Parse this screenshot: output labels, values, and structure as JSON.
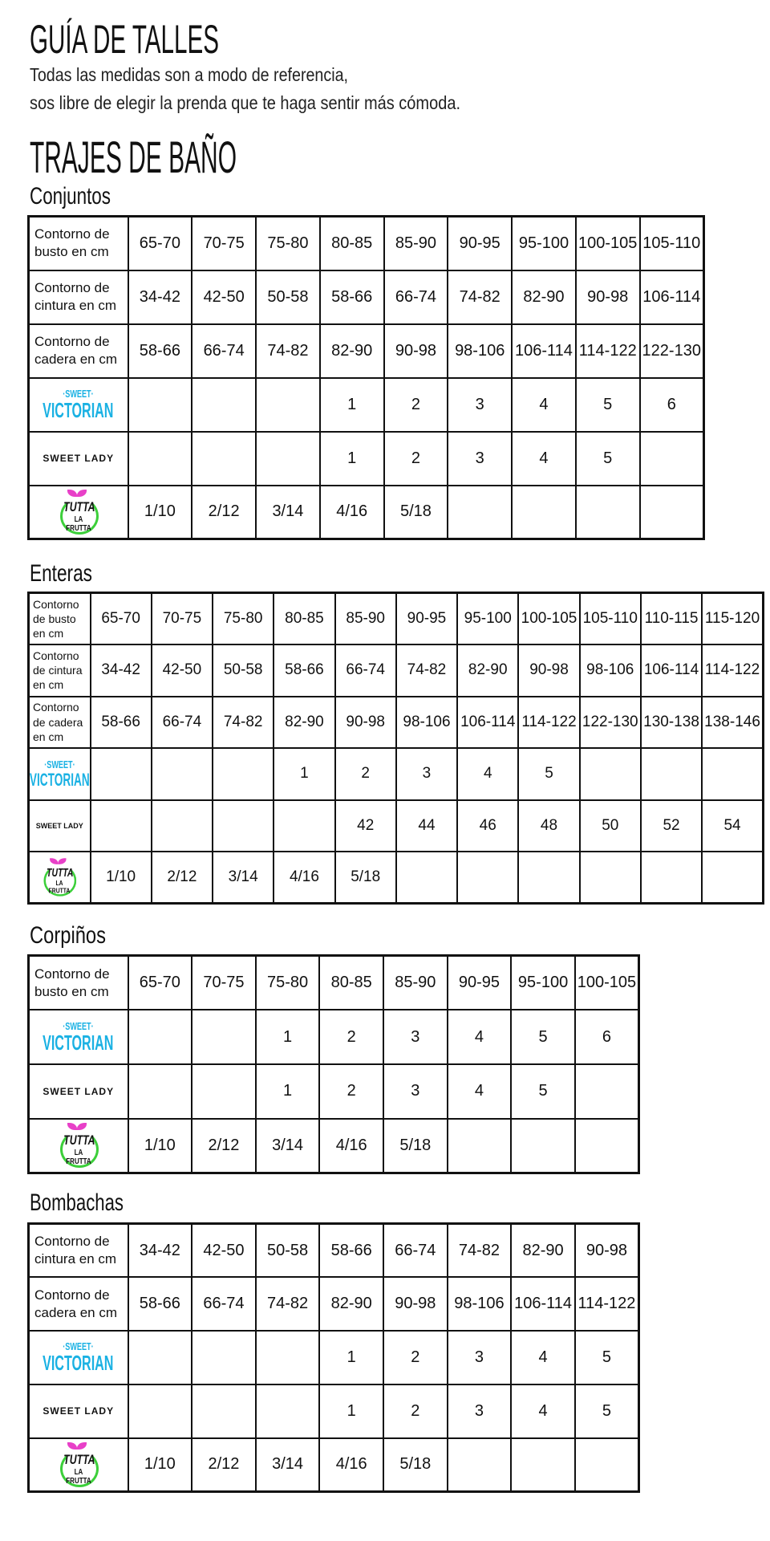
{
  "header": {
    "title": "GUÍA DE TALLES",
    "subtitle_line1": "Todas las medidas son a modo de referencia,",
    "subtitle_line2": "sos libre de elegir la prenda que te haga sentir más cómoda."
  },
  "section_title": "TRAJES DE BAÑO",
  "brand_colors": {
    "sweet_victorian": "#1ab1e3",
    "tutta_leaf": "#e840c8",
    "tutta_ring": "#3ccf3a"
  },
  "logos": {
    "sweet-victorian": {
      "line1": "·SWEET·",
      "line2": "VICTORIAN"
    },
    "sweet-lady": {
      "text": "SWEET LADY"
    },
    "tutta-la-frutta": {
      "line1": "TUTTA",
      "line2": "LA FRUTTA"
    }
  },
  "tables": [
    {
      "id": "conjuntos",
      "heading": "Conjuntos",
      "rows": [
        {
          "label": "Contorno de busto en cm",
          "cells": [
            "65-70",
            "70-75",
            "75-80",
            "80-85",
            "85-90",
            "90-95",
            "95-100",
            "100-105",
            "105-110"
          ]
        },
        {
          "label": "Contorno de cintura en cm",
          "cells": [
            "34-42",
            "42-50",
            "50-58",
            "58-66",
            "66-74",
            "74-82",
            "82-90",
            "90-98",
            "106-114"
          ]
        },
        {
          "label": "Contorno de cadera en cm",
          "cells": [
            "58-66",
            "66-74",
            "74-82",
            "82-90",
            "90-98",
            "98-106",
            "106-114",
            "114-122",
            "122-130"
          ]
        },
        {
          "logo": "sweet-victorian",
          "cells": [
            "",
            "",
            "",
            "1",
            "2",
            "3",
            "4",
            "5",
            "6"
          ]
        },
        {
          "logo": "sweet-lady",
          "cells": [
            "",
            "",
            "",
            "1",
            "2",
            "3",
            "4",
            "5",
            ""
          ]
        },
        {
          "logo": "tutta-la-frutta",
          "cells": [
            "1/10",
            "2/12",
            "3/14",
            "4/16",
            "5/18",
            "",
            "",
            "",
            ""
          ]
        }
      ]
    },
    {
      "id": "enteras",
      "heading": "Enteras",
      "rows": [
        {
          "label": "Contorno de busto en cm",
          "cells": [
            "65-70",
            "70-75",
            "75-80",
            "80-85",
            "85-90",
            "90-95",
            "95-100",
            "100-105",
            "105-110",
            "110-115",
            "115-120"
          ]
        },
        {
          "label": "Contorno de cintura en cm",
          "cells": [
            "34-42",
            "42-50",
            "50-58",
            "58-66",
            "66-74",
            "74-82",
            "82-90",
            "90-98",
            "98-106",
            "106-114",
            "114-122"
          ]
        },
        {
          "label": "Contorno de cadera en cm",
          "cells": [
            "58-66",
            "66-74",
            "74-82",
            "82-90",
            "90-98",
            "98-106",
            "106-114",
            "114-122",
            "122-130",
            "130-138",
            "138-146"
          ]
        },
        {
          "logo": "sweet-victorian",
          "cells": [
            "",
            "",
            "",
            "1",
            "2",
            "3",
            "4",
            "5",
            "",
            "",
            ""
          ]
        },
        {
          "logo": "sweet-lady",
          "cells": [
            "",
            "",
            "",
            "",
            "42",
            "44",
            "46",
            "48",
            "50",
            "52",
            "54"
          ]
        },
        {
          "logo": "tutta-la-frutta",
          "cells": [
            "1/10",
            "2/12",
            "3/14",
            "4/16",
            "5/18",
            "",
            "",
            "",
            "",
            "",
            ""
          ]
        }
      ]
    },
    {
      "id": "corpinos",
      "heading": "Corpiños",
      "rows": [
        {
          "label": "Contorno de busto en cm",
          "cells": [
            "65-70",
            "70-75",
            "75-80",
            "80-85",
            "85-90",
            "90-95",
            "95-100",
            "100-105"
          ]
        },
        {
          "logo": "sweet-victorian",
          "cells": [
            "",
            "",
            "1",
            "2",
            "3",
            "4",
            "5",
            "6"
          ]
        },
        {
          "logo": "sweet-lady",
          "cells": [
            "",
            "",
            "1",
            "2",
            "3",
            "4",
            "5",
            ""
          ]
        },
        {
          "logo": "tutta-la-frutta",
          "cells": [
            "1/10",
            "2/12",
            "3/14",
            "4/16",
            "5/18",
            "",
            "",
            ""
          ]
        }
      ]
    },
    {
      "id": "bombachas",
      "heading": "Bombachas",
      "rows": [
        {
          "label": "Contorno de cintura en cm",
          "cells": [
            "34-42",
            "42-50",
            "50-58",
            "58-66",
            "66-74",
            "74-82",
            "82-90",
            "90-98"
          ]
        },
        {
          "label": "Contorno de cadera en cm",
          "cells": [
            "58-66",
            "66-74",
            "74-82",
            "82-90",
            "90-98",
            "98-106",
            "106-114",
            "114-122"
          ]
        },
        {
          "logo": "sweet-victorian",
          "cells": [
            "",
            "",
            "",
            "1",
            "2",
            "3",
            "4",
            "5"
          ]
        },
        {
          "logo": "sweet-lady",
          "cells": [
            "",
            "",
            "",
            "1",
            "2",
            "3",
            "4",
            "5"
          ]
        },
        {
          "logo": "tutta-la-frutta",
          "cells": [
            "1/10",
            "2/12",
            "3/14",
            "4/16",
            "5/18",
            "",
            "",
            ""
          ]
        }
      ]
    }
  ]
}
